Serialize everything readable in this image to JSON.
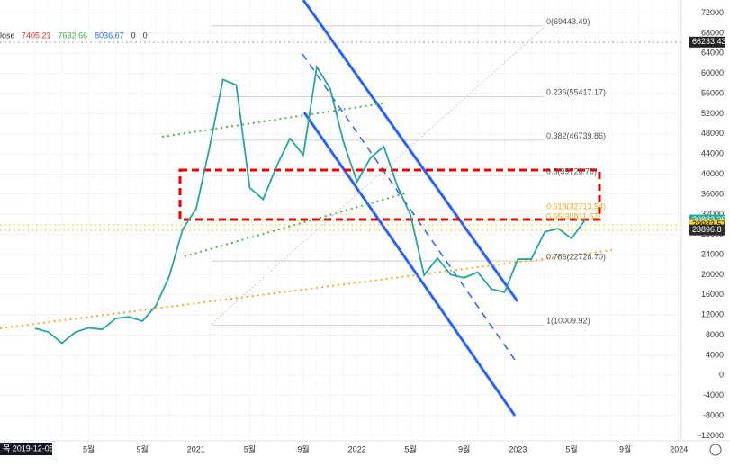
{
  "chart_data": {
    "type": "line",
    "legend_label": "lose",
    "legend_values": [
      7405.21,
      7632.66,
      8036.67,
      0,
      0
    ],
    "legend_colors": [
      "#e03030",
      "#3cb043",
      "#2a6fd6",
      "#333333",
      "#333333"
    ],
    "cursor_date": "목 2019-12-05",
    "categories": [
      null,
      null,
      null,
      null,
      "5월",
      null,
      null,
      null,
      "9월",
      null,
      null,
      null,
      "2021",
      null,
      null,
      null,
      "5월",
      null,
      null,
      null,
      "9월",
      null,
      null,
      null,
      "2022",
      null,
      null,
      null,
      "5월",
      null,
      null,
      null,
      "9월",
      null,
      null,
      null,
      "2023",
      null,
      null,
      null,
      "5월",
      null,
      null,
      null,
      "9월",
      null,
      null,
      null,
      "2024"
    ],
    "series": [
      {
        "color": "#26a69a",
        "values": [
          9350,
          8600,
          6400,
          8600,
          9450,
          9140,
          11300,
          11650,
          10780,
          13800,
          19700,
          29000,
          33100,
          45200,
          58800,
          57700,
          37300,
          35000,
          41500,
          47100,
          43800,
          61300,
          57000,
          46300,
          38500,
          43200,
          45500,
          37700,
          31800,
          19900,
          23300,
          20000,
          19400,
          20500,
          17200,
          16500,
          23100,
          23100,
          28500,
          29200,
          27200,
          30882.35,
          null,
          null,
          null,
          null,
          null,
          null,
          null
        ]
      }
    ],
    "ylim": [
      -13000,
      74600
    ],
    "yticks": [
      -12000,
      -8000,
      -4000,
      0,
      4000,
      8000,
      12000,
      16000,
      20000,
      24000,
      28000,
      32000,
      36000,
      40000,
      44000,
      48000,
      52000,
      56000,
      60000,
      64000,
      68000,
      72000
    ],
    "fib_levels": [
      {
        "value": 69443.49,
        "label": "0(69443.49)"
      },
      {
        "value": 55417.17,
        "label": "0.236(55417.17)"
      },
      {
        "value": 46739.86,
        "label": "0.382(46739.86)"
      },
      {
        "value": 39726.7,
        "label": "0.5(39726.70)"
      },
      {
        "value": 32713.54,
        "label": "0.618(32713.54)"
      },
      {
        "value": 30811.67,
        "label": "0.65(30811.67)"
      },
      {
        "value": 22728.7,
        "label": "0.786(22728.70)"
      },
      {
        "value": 10009.92,
        "label": "1(10009.92)"
      }
    ],
    "price_labels": [
      {
        "value": 66233.43,
        "color": "#222222"
      },
      {
        "value": 30882.35,
        "color": "#26a69a"
      },
      {
        "value": 29983.57,
        "color": "#f5d33b"
      },
      {
        "value": 28896.8,
        "color": "#2b2b2b"
      }
    ],
    "countdown": "18:39:08",
    "grid": true
  }
}
